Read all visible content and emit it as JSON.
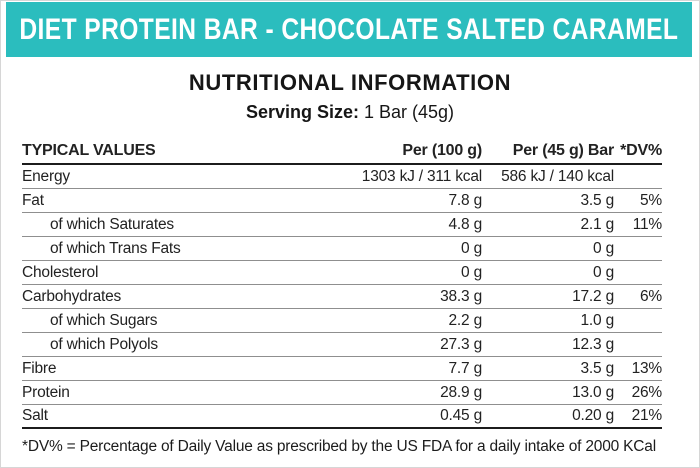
{
  "banner": {
    "title": "DIET PROTEIN BAR - CHOCOLATE SALTED CARAMEL",
    "bg_color": "#2bbdbe",
    "text_color": "#ffffff"
  },
  "section": {
    "title": "NUTRITIONAL INFORMATION",
    "serving_label": "Serving Size:",
    "serving_value": "1 Bar (45g)"
  },
  "table": {
    "columns": [
      "TYPICAL VALUES",
      "Per (100 g)",
      "Per (45 g) Bar",
      "*DV%"
    ],
    "rows": [
      {
        "name": "Energy",
        "indent": false,
        "per100": "1303 kJ / 311 kcal",
        "per45": "586 kJ / 140 kcal",
        "dv": ""
      },
      {
        "name": "Fat",
        "indent": false,
        "per100": "7.8 g",
        "per45": "3.5 g",
        "dv": "5%"
      },
      {
        "name": "of which Saturates",
        "indent": true,
        "per100": "4.8 g",
        "per45": "2.1 g",
        "dv": "11%"
      },
      {
        "name": "of which Trans Fats",
        "indent": true,
        "per100": "0 g",
        "per45": "0 g",
        "dv": ""
      },
      {
        "name": "Cholesterol",
        "indent": false,
        "per100": "0 g",
        "per45": "0 g",
        "dv": ""
      },
      {
        "name": "Carbohydrates",
        "indent": false,
        "per100": "38.3 g",
        "per45": "17.2 g",
        "dv": "6%"
      },
      {
        "name": "of which Sugars",
        "indent": true,
        "per100": "2.2 g",
        "per45": "1.0 g",
        "dv": ""
      },
      {
        "name": "of which Polyols",
        "indent": true,
        "per100": "27.3 g",
        "per45": "12.3 g",
        "dv": ""
      },
      {
        "name": "Fibre",
        "indent": false,
        "per100": "7.7 g",
        "per45": "3.5 g",
        "dv": "13%"
      },
      {
        "name": "Protein",
        "indent": false,
        "per100": "28.9 g",
        "per45": "13.0 g",
        "dv": "26%"
      },
      {
        "name": "Salt",
        "indent": false,
        "per100": "0.45 g",
        "per45": "0.20 g",
        "dv": "21%"
      }
    ]
  },
  "footnote": "*DV% = Percentage of Daily Value as prescribed by the US FDA for a daily intake of 2000 KCal"
}
